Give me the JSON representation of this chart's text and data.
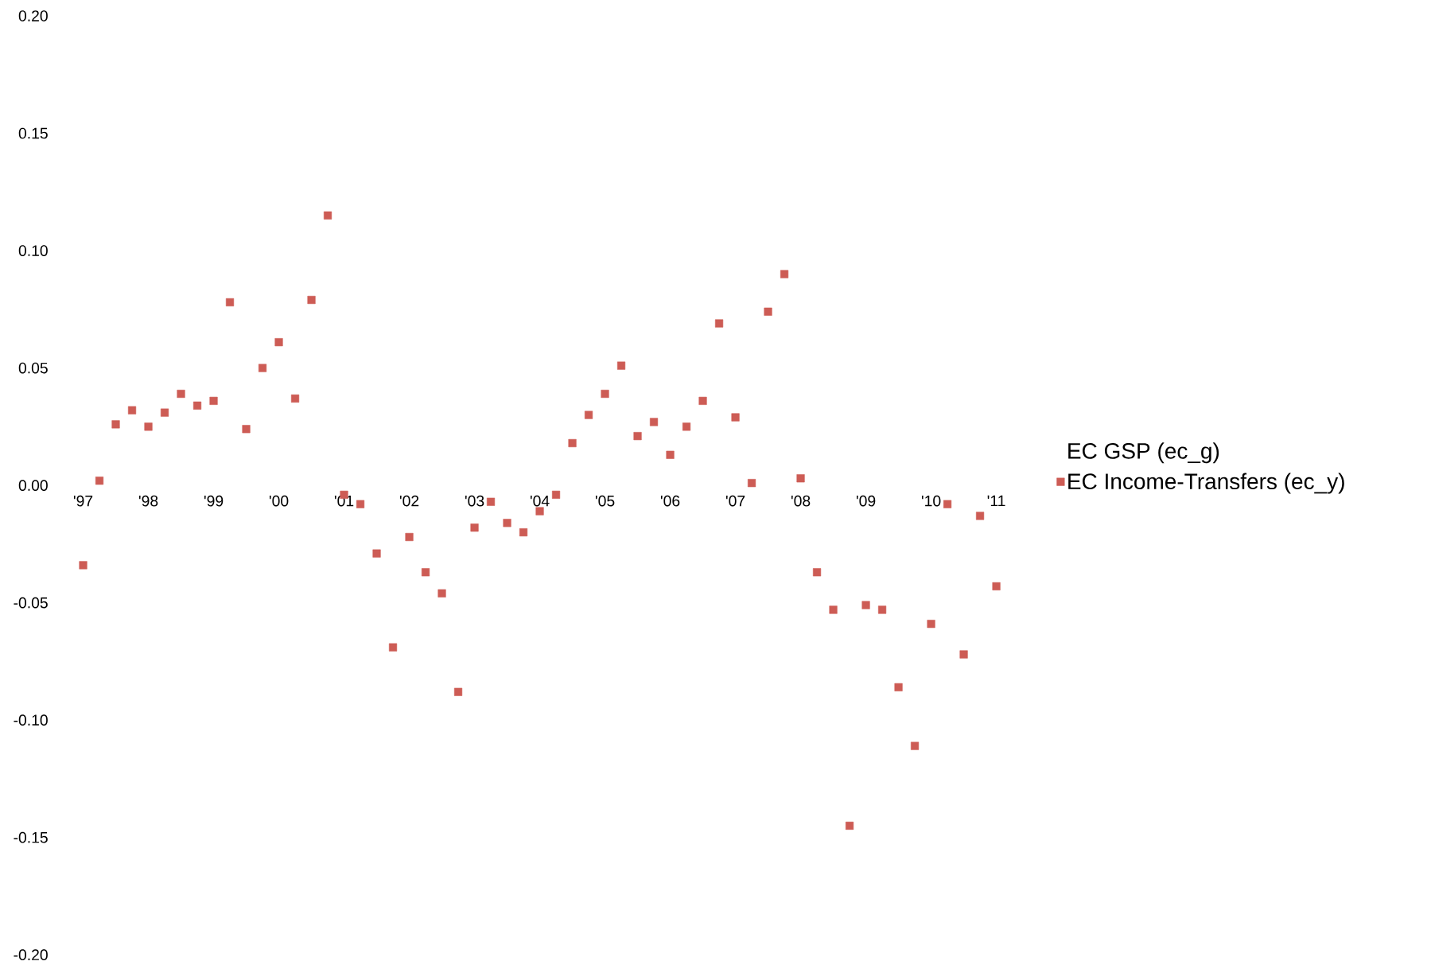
{
  "chart_data": {
    "type": "scatter",
    "categories": [
      "'97",
      null,
      null,
      null,
      "'98",
      null,
      null,
      null,
      "'99",
      null,
      null,
      null,
      "'00",
      null,
      null,
      null,
      "'01",
      null,
      null,
      null,
      "'02",
      null,
      null,
      null,
      "'03",
      null,
      null,
      null,
      "'04",
      null,
      null,
      null,
      "'05",
      null,
      null,
      null,
      "'06",
      null,
      null,
      null,
      "'07",
      null,
      null,
      null,
      "'08",
      null,
      null,
      null,
      "'09",
      null,
      null,
      null,
      "'10",
      null,
      null,
      null,
      "'11"
    ],
    "series": [
      {
        "name": "EC GSP (ec_g)",
        "marker": "none",
        "values": [
          null,
          null,
          null,
          null,
          null,
          null,
          null,
          null,
          null,
          null,
          null,
          null,
          null,
          null,
          null,
          null,
          null,
          null,
          null,
          null,
          null,
          null,
          null,
          null,
          null,
          null,
          null,
          null,
          null,
          null,
          null,
          null,
          null,
          null,
          null,
          null,
          null,
          null,
          null,
          null,
          null,
          null,
          null,
          null,
          null,
          null,
          null,
          null,
          null,
          null,
          null,
          null,
          null,
          null,
          null,
          null,
          null
        ]
      },
      {
        "name": "EC Income-Transfers (ec_y)",
        "marker": "square",
        "color": "#cd5c55",
        "values": [
          -0.034,
          0.002,
          0.026,
          0.032,
          0.025,
          0.031,
          0.039,
          0.034,
          0.036,
          0.078,
          0.024,
          0.05,
          0.061,
          0.037,
          0.079,
          0.115,
          -0.004,
          -0.008,
          -0.029,
          -0.069,
          -0.022,
          -0.037,
          -0.046,
          -0.088,
          -0.018,
          -0.007,
          -0.016,
          -0.02,
          -0.011,
          -0.004,
          0.018,
          0.03,
          0.039,
          0.051,
          0.021,
          0.027,
          0.013,
          0.025,
          0.036,
          0.069,
          0.029,
          0.001,
          0.074,
          0.09,
          0.003,
          -0.037,
          -0.053,
          -0.145,
          -0.051,
          -0.053,
          -0.086,
          -0.111,
          -0.059,
          -0.008,
          -0.072,
          -0.013,
          -0.043
        ]
      }
    ],
    "ylim": [
      -0.2,
      0.2
    ],
    "yticks": [
      {
        "value": -0.2,
        "label": "-0.20"
      },
      {
        "value": -0.15,
        "label": "-0.15"
      },
      {
        "value": -0.1,
        "label": "-0.10"
      },
      {
        "value": -0.05,
        "label": "-0.05"
      },
      {
        "value": 0,
        "label": "0.00"
      },
      {
        "value": 0.05,
        "label": "0.05"
      },
      {
        "value": 0.1,
        "label": "0.10"
      },
      {
        "value": 0.15,
        "label": "0.15"
      },
      {
        "value": 0.2,
        "label": "0.20"
      }
    ],
    "grid": false,
    "legend": "right"
  }
}
